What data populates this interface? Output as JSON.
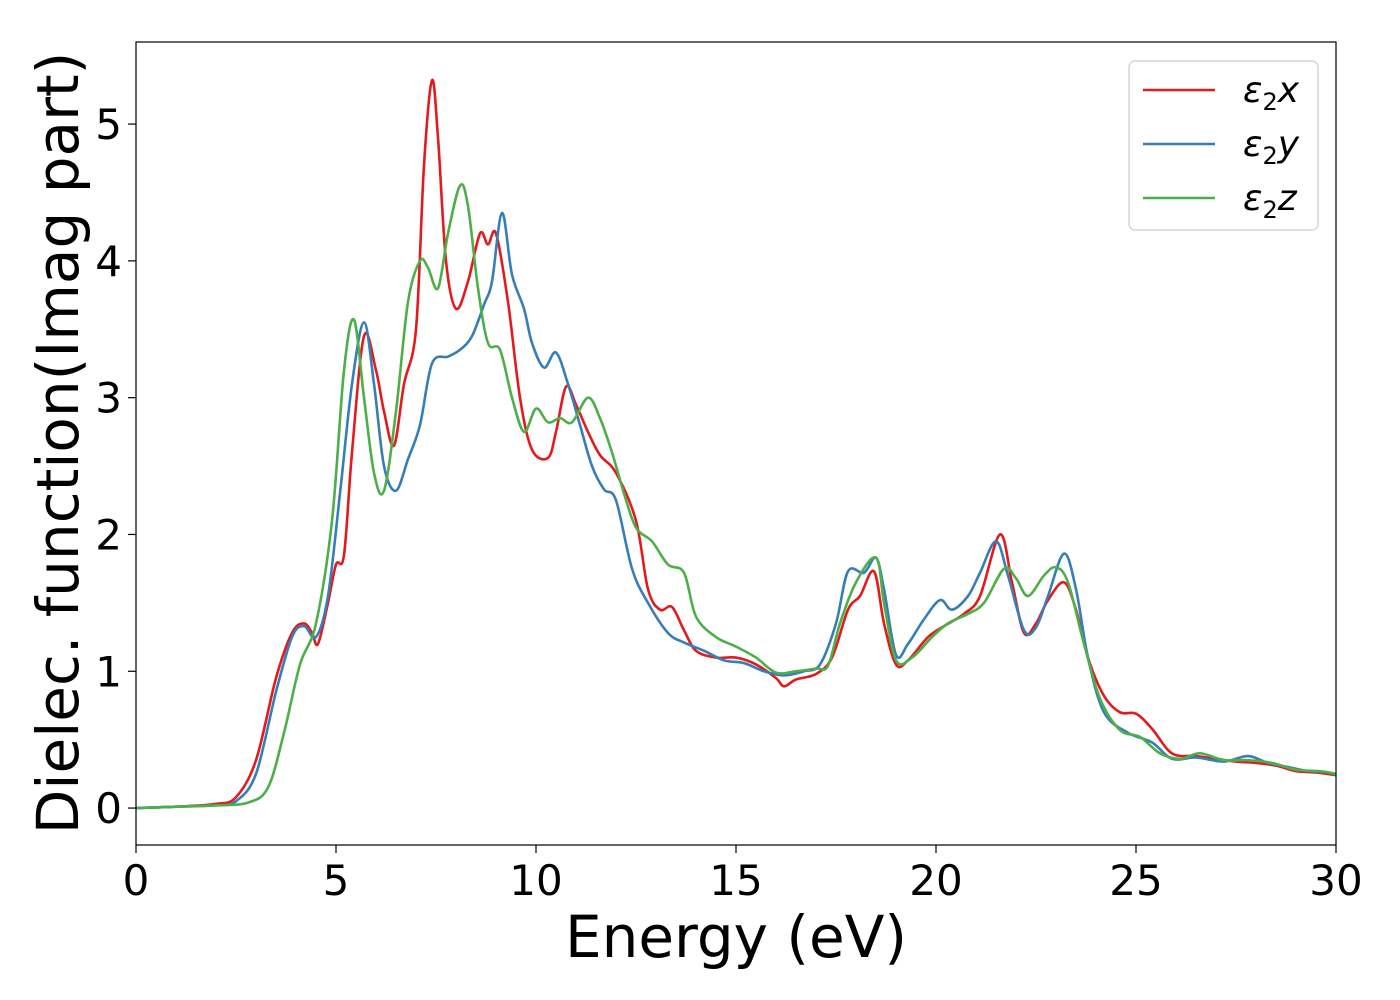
{
  "chart_data": {
    "type": "line",
    "xlabel": "Energy (eV)",
    "ylabel": "Dielec. function(Imag part)",
    "xlim": [
      0,
      30
    ],
    "ylim": [
      -0.27,
      5.6
    ],
    "xticks": [
      0,
      5,
      10,
      15,
      20,
      25,
      30
    ],
    "yticks": [
      0,
      1,
      2,
      3,
      4,
      5
    ],
    "grid": false,
    "legend_position": "top-right",
    "series": [
      {
        "name": "ε2x",
        "legend_base": "ε",
        "legend_sub": "2",
        "legend_tail": "x",
        "color": "#e41a1c",
        "points": [
          [
            0,
            0
          ],
          [
            1,
            0.01
          ],
          [
            2,
            0.03
          ],
          [
            2.5,
            0.08
          ],
          [
            3,
            0.35
          ],
          [
            3.5,
            0.95
          ],
          [
            3.9,
            1.28
          ],
          [
            4.2,
            1.35
          ],
          [
            4.4,
            1.28
          ],
          [
            4.55,
            1.2
          ],
          [
            4.8,
            1.5
          ],
          [
            5.0,
            1.78
          ],
          [
            5.2,
            1.85
          ],
          [
            5.4,
            2.6
          ],
          [
            5.7,
            3.45
          ],
          [
            6.0,
            3.2
          ],
          [
            6.2,
            2.9
          ],
          [
            6.45,
            2.65
          ],
          [
            6.7,
            3.1
          ],
          [
            7.0,
            3.5
          ],
          [
            7.2,
            4.7
          ],
          [
            7.4,
            5.32
          ],
          [
            7.55,
            4.9
          ],
          [
            7.75,
            4.0
          ],
          [
            8.0,
            3.65
          ],
          [
            8.3,
            3.85
          ],
          [
            8.6,
            4.2
          ],
          [
            8.8,
            4.12
          ],
          [
            9.0,
            4.2
          ],
          [
            9.3,
            3.7
          ],
          [
            9.6,
            3.0
          ],
          [
            9.9,
            2.62
          ],
          [
            10.3,
            2.56
          ],
          [
            10.5,
            2.75
          ],
          [
            10.75,
            3.08
          ],
          [
            11.0,
            2.95
          ],
          [
            11.3,
            2.75
          ],
          [
            11.6,
            2.58
          ],
          [
            12.0,
            2.45
          ],
          [
            12.5,
            2.1
          ],
          [
            12.8,
            1.6
          ],
          [
            13.1,
            1.45
          ],
          [
            13.4,
            1.47
          ],
          [
            13.7,
            1.3
          ],
          [
            14.0,
            1.15
          ],
          [
            14.5,
            1.1
          ],
          [
            15.0,
            1.1
          ],
          [
            15.5,
            1.05
          ],
          [
            16.0,
            0.95
          ],
          [
            16.2,
            0.89
          ],
          [
            16.5,
            0.94
          ],
          [
            17.0,
            0.98
          ],
          [
            17.4,
            1.1
          ],
          [
            17.8,
            1.45
          ],
          [
            18.1,
            1.55
          ],
          [
            18.45,
            1.73
          ],
          [
            18.7,
            1.35
          ],
          [
            19.0,
            1.05
          ],
          [
            19.3,
            1.08
          ],
          [
            19.8,
            1.25
          ],
          [
            20.2,
            1.33
          ],
          [
            20.7,
            1.42
          ],
          [
            21.1,
            1.55
          ],
          [
            21.6,
            2.0
          ],
          [
            21.9,
            1.65
          ],
          [
            22.2,
            1.28
          ],
          [
            22.5,
            1.35
          ],
          [
            22.8,
            1.52
          ],
          [
            23.2,
            1.65
          ],
          [
            23.5,
            1.45
          ],
          [
            23.8,
            1.1
          ],
          [
            24.2,
            0.82
          ],
          [
            24.6,
            0.7
          ],
          [
            25.0,
            0.69
          ],
          [
            25.4,
            0.58
          ],
          [
            25.9,
            0.4
          ],
          [
            26.5,
            0.38
          ],
          [
            27.0,
            0.36
          ],
          [
            27.5,
            0.34
          ],
          [
            28.0,
            0.33
          ],
          [
            28.5,
            0.31
          ],
          [
            29.0,
            0.27
          ],
          [
            29.5,
            0.26
          ],
          [
            30,
            0.24
          ]
        ]
      },
      {
        "name": "ε2y",
        "legend_base": "ε",
        "legend_sub": "2",
        "legend_tail": "y",
        "color": "#377eb8",
        "points": [
          [
            0,
            0
          ],
          [
            1,
            0.01
          ],
          [
            2,
            0.02
          ],
          [
            2.5,
            0.05
          ],
          [
            3,
            0.25
          ],
          [
            3.5,
            0.85
          ],
          [
            3.9,
            1.25
          ],
          [
            4.2,
            1.33
          ],
          [
            4.5,
            1.25
          ],
          [
            4.8,
            1.55
          ],
          [
            5.1,
            2.3
          ],
          [
            5.4,
            3.1
          ],
          [
            5.7,
            3.55
          ],
          [
            5.95,
            3.1
          ],
          [
            6.2,
            2.5
          ],
          [
            6.5,
            2.32
          ],
          [
            6.8,
            2.55
          ],
          [
            7.1,
            2.8
          ],
          [
            7.4,
            3.25
          ],
          [
            7.8,
            3.3
          ],
          [
            8.1,
            3.35
          ],
          [
            8.4,
            3.45
          ],
          [
            8.7,
            3.68
          ],
          [
            8.9,
            3.85
          ],
          [
            9.15,
            4.35
          ],
          [
            9.4,
            3.9
          ],
          [
            9.7,
            3.65
          ],
          [
            9.9,
            3.4
          ],
          [
            10.2,
            3.22
          ],
          [
            10.5,
            3.33
          ],
          [
            10.8,
            3.1
          ],
          [
            11.1,
            2.8
          ],
          [
            11.4,
            2.5
          ],
          [
            11.7,
            2.33
          ],
          [
            12.0,
            2.25
          ],
          [
            12.4,
            1.75
          ],
          [
            12.8,
            1.5
          ],
          [
            13.3,
            1.28
          ],
          [
            13.7,
            1.21
          ],
          [
            14.2,
            1.15
          ],
          [
            14.7,
            1.08
          ],
          [
            15.2,
            1.06
          ],
          [
            15.7,
            1.0
          ],
          [
            16.2,
            0.97
          ],
          [
            16.7,
            1.0
          ],
          [
            17.1,
            1.05
          ],
          [
            17.5,
            1.35
          ],
          [
            17.8,
            1.73
          ],
          [
            18.2,
            1.72
          ],
          [
            18.5,
            1.83
          ],
          [
            18.7,
            1.6
          ],
          [
            19.0,
            1.12
          ],
          [
            19.3,
            1.2
          ],
          [
            19.7,
            1.38
          ],
          [
            20.1,
            1.52
          ],
          [
            20.4,
            1.45
          ],
          [
            20.8,
            1.55
          ],
          [
            21.1,
            1.72
          ],
          [
            21.5,
            1.95
          ],
          [
            21.8,
            1.7
          ],
          [
            22.2,
            1.3
          ],
          [
            22.5,
            1.32
          ],
          [
            22.8,
            1.55
          ],
          [
            23.2,
            1.86
          ],
          [
            23.5,
            1.6
          ],
          [
            23.8,
            1.1
          ],
          [
            24.2,
            0.7
          ],
          [
            24.8,
            0.55
          ],
          [
            25.4,
            0.48
          ],
          [
            25.9,
            0.36
          ],
          [
            26.5,
            0.37
          ],
          [
            27.2,
            0.34
          ],
          [
            27.8,
            0.38
          ],
          [
            28.3,
            0.33
          ],
          [
            28.8,
            0.3
          ],
          [
            29.3,
            0.27
          ],
          [
            29.8,
            0.26
          ],
          [
            30,
            0.24
          ]
        ]
      },
      {
        "name": "ε2z",
        "legend_base": "ε",
        "legend_sub": "2",
        "legend_tail": "z",
        "color": "#4daf4a",
        "points": [
          [
            0,
            0
          ],
          [
            1,
            0.01
          ],
          [
            2,
            0.02
          ],
          [
            2.8,
            0.04
          ],
          [
            3.3,
            0.15
          ],
          [
            3.7,
            0.55
          ],
          [
            4.1,
            1.05
          ],
          [
            4.5,
            1.35
          ],
          [
            4.9,
            2.1
          ],
          [
            5.2,
            3.2
          ],
          [
            5.45,
            3.57
          ],
          [
            5.7,
            3.0
          ],
          [
            5.95,
            2.45
          ],
          [
            6.2,
            2.32
          ],
          [
            6.5,
            2.9
          ],
          [
            6.8,
            3.7
          ],
          [
            7.1,
            4.0
          ],
          [
            7.3,
            3.95
          ],
          [
            7.55,
            3.8
          ],
          [
            7.8,
            4.2
          ],
          [
            8.1,
            4.55
          ],
          [
            8.3,
            4.4
          ],
          [
            8.55,
            3.8
          ],
          [
            8.8,
            3.4
          ],
          [
            9.1,
            3.35
          ],
          [
            9.4,
            3.0
          ],
          [
            9.7,
            2.75
          ],
          [
            10.0,
            2.92
          ],
          [
            10.3,
            2.82
          ],
          [
            10.6,
            2.85
          ],
          [
            10.9,
            2.82
          ],
          [
            11.3,
            3.0
          ],
          [
            11.6,
            2.85
          ],
          [
            11.9,
            2.6
          ],
          [
            12.2,
            2.3
          ],
          [
            12.5,
            2.05
          ],
          [
            12.9,
            1.95
          ],
          [
            13.3,
            1.78
          ],
          [
            13.7,
            1.72
          ],
          [
            14.0,
            1.4
          ],
          [
            14.5,
            1.25
          ],
          [
            15.0,
            1.18
          ],
          [
            15.5,
            1.1
          ],
          [
            16.0,
            0.99
          ],
          [
            16.5,
            1.0
          ],
          [
            17.0,
            1.02
          ],
          [
            17.3,
            1.04
          ],
          [
            17.6,
            1.35
          ],
          [
            18.0,
            1.65
          ],
          [
            18.5,
            1.83
          ],
          [
            18.7,
            1.5
          ],
          [
            19.0,
            1.08
          ],
          [
            19.4,
            1.1
          ],
          [
            19.9,
            1.25
          ],
          [
            20.3,
            1.35
          ],
          [
            20.8,
            1.42
          ],
          [
            21.2,
            1.5
          ],
          [
            21.7,
            1.75
          ],
          [
            22.0,
            1.68
          ],
          [
            22.3,
            1.55
          ],
          [
            22.7,
            1.7
          ],
          [
            23.0,
            1.76
          ],
          [
            23.3,
            1.65
          ],
          [
            23.7,
            1.2
          ],
          [
            24.1,
            0.8
          ],
          [
            24.6,
            0.57
          ],
          [
            25.1,
            0.52
          ],
          [
            25.6,
            0.4
          ],
          [
            26.1,
            0.36
          ],
          [
            26.6,
            0.4
          ],
          [
            27.2,
            0.35
          ],
          [
            27.8,
            0.35
          ],
          [
            28.4,
            0.33
          ],
          [
            29.0,
            0.28
          ],
          [
            29.6,
            0.27
          ],
          [
            30,
            0.25
          ]
        ]
      }
    ]
  }
}
